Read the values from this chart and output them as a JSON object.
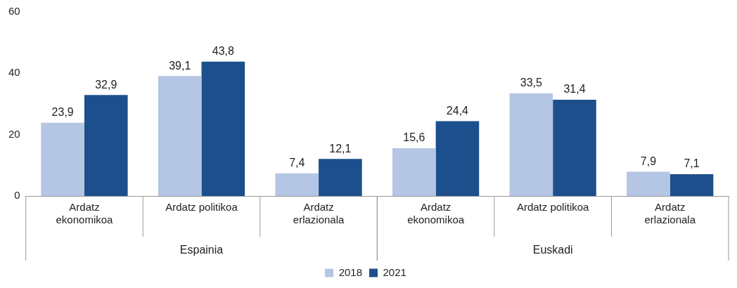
{
  "chart_data": {
    "type": "bar",
    "categories": [
      "Ardatz ekonomikoa",
      "Ardatz politikoa",
      "Ardatz erlazionala",
      "Ardatz ekonomikoa",
      "Ardatz politikoa",
      "Ardatz erlazionala"
    ],
    "series": [
      {
        "name": "2018",
        "color": "#b4c6e4",
        "values": [
          23.9,
          39.1,
          7.4,
          15.6,
          33.5,
          7.9
        ],
        "value_labels": [
          "23,9",
          "39,1",
          "7,4",
          "15,6",
          "33,5",
          "7,9"
        ]
      },
      {
        "name": "2021",
        "color": "#1c4f8c",
        "values": [
          32.9,
          43.8,
          12.1,
          24.4,
          31.4,
          7.1
        ],
        "value_labels": [
          "32,9",
          "43,8",
          "12,1",
          "24,4",
          "31,4",
          "7,1"
        ]
      }
    ],
    "annotations": [
      "Espainia",
      "Euskadi"
    ],
    "ylim": [
      0,
      60
    ],
    "yticks": [
      0,
      20,
      40,
      60
    ],
    "grid": false,
    "legend": "bottom"
  }
}
